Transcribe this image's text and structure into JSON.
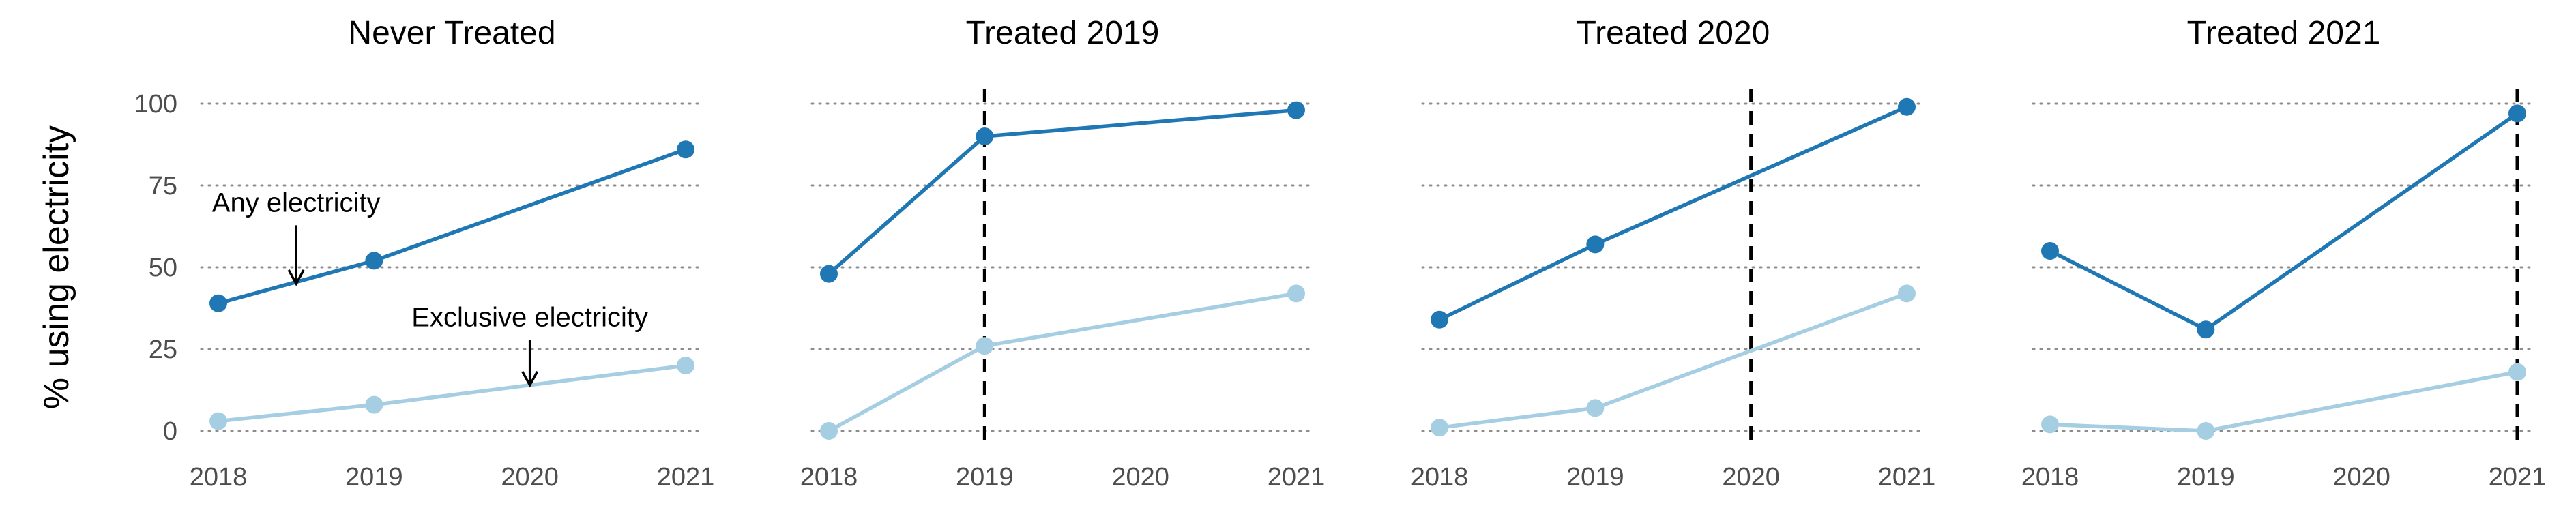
{
  "chart_data": {
    "type": "line",
    "ylabel": "% using electricity",
    "xlabel": "",
    "ylim": [
      -5,
      108
    ],
    "yticks": [
      0,
      25,
      50,
      75,
      100
    ],
    "grid": "horizontal dotted",
    "colors": {
      "Any electricity": "#1f77b4",
      "Exclusive electricity": "#a6cee3"
    },
    "panels": [
      {
        "title": "Never Treated",
        "x": [
          "2018",
          "2019",
          "2020",
          "2021"
        ],
        "treated_year": null,
        "series": [
          {
            "name": "Any electricity",
            "x": [
              "2018",
              "2019",
              "2021"
            ],
            "values": [
              39,
              52,
              86
            ]
          },
          {
            "name": "Exclusive electricity",
            "x": [
              "2018",
              "2019",
              "2021"
            ],
            "values": [
              3,
              8,
              20
            ]
          }
        ],
        "annotations": [
          {
            "text": "Any electricity",
            "x": 2018.5,
            "y": 67,
            "arrow_to": [
              2018.5,
              45
            ]
          },
          {
            "text": "Exclusive electricity",
            "x": 2020,
            "y": 32,
            "arrow_to": [
              2020,
              14
            ]
          }
        ]
      },
      {
        "title": "Treated 2019",
        "x": [
          "2018",
          "2019",
          "2020",
          "2021"
        ],
        "treated_year": "2019",
        "series": [
          {
            "name": "Any electricity",
            "x": [
              "2018",
              "2019",
              "2021"
            ],
            "values": [
              48,
              90,
              98
            ]
          },
          {
            "name": "Exclusive electricity",
            "x": [
              "2018",
              "2019",
              "2021"
            ],
            "values": [
              0,
              26,
              42
            ]
          }
        ],
        "annotations": []
      },
      {
        "title": "Treated 2020",
        "x": [
          "2018",
          "2019",
          "2020",
          "2021"
        ],
        "treated_year": "2020",
        "series": [
          {
            "name": "Any electricity",
            "x": [
              "2018",
              "2019",
              "2021"
            ],
            "values": [
              34,
              57,
              99
            ]
          },
          {
            "name": "Exclusive electricity",
            "x": [
              "2018",
              "2019",
              "2021"
            ],
            "values": [
              1,
              7,
              42
            ]
          }
        ],
        "annotations": []
      },
      {
        "title": "Treated 2021",
        "x": [
          "2018",
          "2019",
          "2020",
          "2021"
        ],
        "treated_year": "2021",
        "series": [
          {
            "name": "Any electricity",
            "x": [
              "2018",
              "2019",
              "2021"
            ],
            "values": [
              55,
              31,
              97
            ]
          },
          {
            "name": "Exclusive electricity",
            "x": [
              "2018",
              "2019",
              "2021"
            ],
            "values": [
              2,
              0,
              18
            ]
          }
        ],
        "annotations": []
      }
    ]
  }
}
